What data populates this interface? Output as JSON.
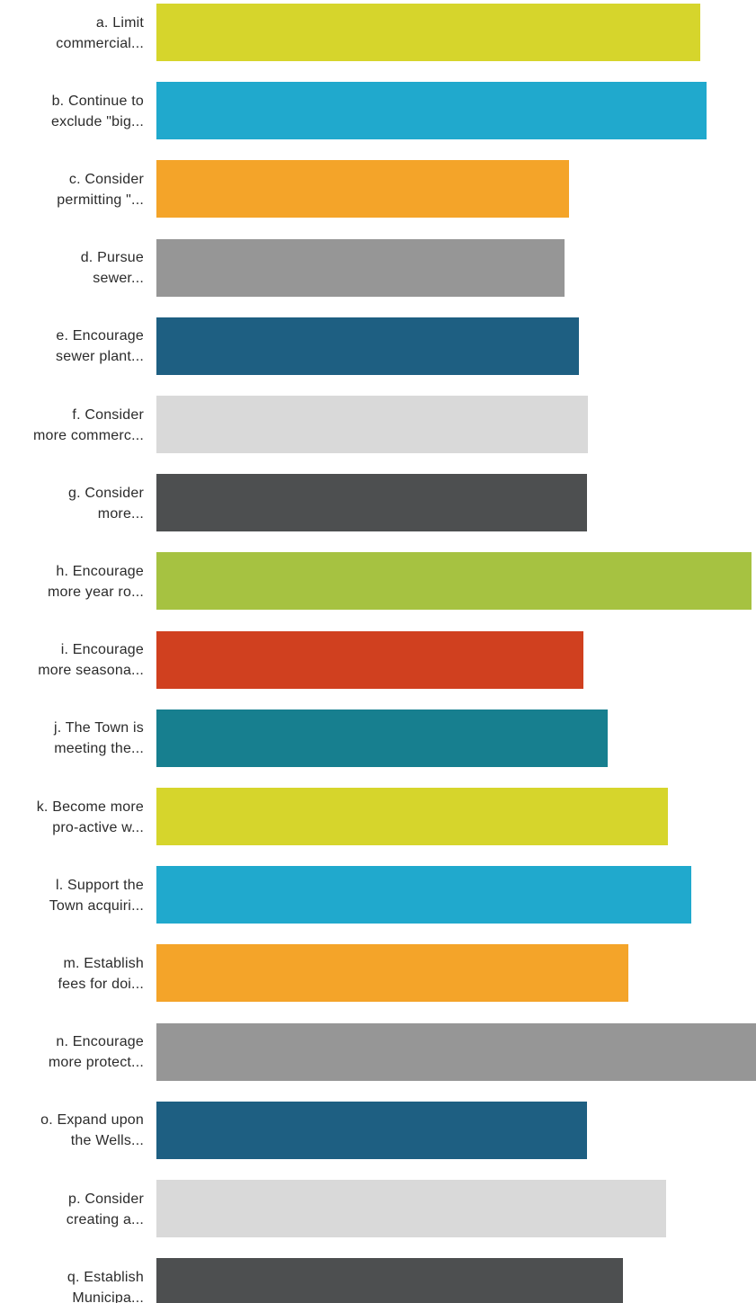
{
  "chart_data": {
    "type": "bar",
    "orientation": "horizontal",
    "title": "",
    "xlabel": "",
    "ylabel": "",
    "grid": false,
    "legend": "none",
    "xlim": [
      0,
      4.0
    ],
    "categories": [
      [
        "a. Limit",
        "commercial..."
      ],
      [
        "b. Continue to",
        "exclude \"big..."
      ],
      [
        "c. Consider",
        "permitting \"..."
      ],
      [
        "d. Pursue",
        "sewer..."
      ],
      [
        "e. Encourage",
        "sewer plant..."
      ],
      [
        "f. Consider",
        "more commerc..."
      ],
      [
        "g. Consider",
        "more..."
      ],
      [
        "h. Encourage",
        "more year ro..."
      ],
      [
        "i. Encourage",
        "more seasona..."
      ],
      [
        "j. The Town is",
        "meeting the..."
      ],
      [
        "k. Become more",
        "pro-active w..."
      ],
      [
        "l. Support the",
        "Town acquiri..."
      ],
      [
        "m. Establish",
        "fees for doi..."
      ],
      [
        "n. Encourage",
        "more protect..."
      ],
      [
        "o. Expand upon",
        "the Wells..."
      ],
      [
        "p. Consider",
        "creating a..."
      ],
      [
        "q. Establish",
        "Municipa..."
      ]
    ],
    "values": [
      3.63,
      3.67,
      2.75,
      2.72,
      2.82,
      2.88,
      2.87,
      3.97,
      2.85,
      3.01,
      3.41,
      3.57,
      3.15,
      4.0,
      2.87,
      3.4,
      3.11
    ],
    "colors": [
      "#d6d52c",
      "#20a9cd",
      "#f4a429",
      "#969696",
      "#1e5f82",
      "#d9d9d9",
      "#4d4f50",
      "#a6c241",
      "#d0401f",
      "#177f8f",
      "#d6d52c",
      "#20a9cd",
      "#f4a429",
      "#969696",
      "#1e5f82",
      "#d9d9d9",
      "#4d4f50"
    ]
  }
}
